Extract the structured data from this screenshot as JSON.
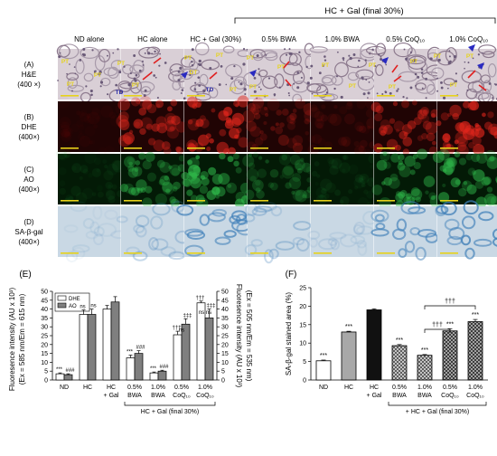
{
  "header": {
    "columns": [
      "ND alone",
      "HC alone",
      "HC + Gal (30%)",
      "0.5% BWA",
      "1.0% BWA",
      "0.5% CoQ₁₀",
      "1.0% CoQ₁₀"
    ],
    "group_label": "HC  + Gal (final 30%)"
  },
  "rows": [
    {
      "letter": "(A)",
      "name": "H&E",
      "mag": "(400 ×)",
      "tint": "#d9cfd6"
    },
    {
      "letter": "(B)",
      "name": "DHE",
      "mag": "(400×)",
      "tint": "#200404"
    },
    {
      "letter": "(C)",
      "name": "AO",
      "mag": "(400×)",
      "tint": "#031a06"
    },
    {
      "letter": "(D)",
      "name": "SA-β-gal",
      "mag": "(400×)",
      "tint": "#c9d8e4"
    }
  ],
  "micro_labels": {
    "pt": "PT",
    "dt": "DT",
    "td": "TD"
  },
  "panel_letters": {
    "e": "(E)",
    "f": "(F)"
  },
  "colors": {
    "dhe": "#ffffff",
    "ao": "#7f7f7f",
    "red_signal": "#e0261c",
    "green_signal": "#2fb84a",
    "blue_stain": "#3f7fb8"
  },
  "chart_data": [
    {
      "type": "bar",
      "panel": "(E)",
      "categories": [
        "ND",
        "HC",
        "HC + Gal",
        "0.5% BWA",
        "1.0% BWA",
        "0.5% CoQ₁₀",
        "1.0% CoQ₁₀"
      ],
      "series": [
        {
          "name": "DHE",
          "values": [
            3.5,
            37,
            40,
            12.5,
            4,
            25.5,
            43.5
          ],
          "errors": [
            0.5,
            2.5,
            2,
            1.5,
            0.5,
            2,
            1
          ]
        },
        {
          "name": "AO",
          "values": [
            3,
            37,
            44,
            15,
            5,
            31.5,
            35
          ],
          "errors": [
            0.5,
            3,
            3,
            1.5,
            0.5,
            3,
            5
          ]
        }
      ],
      "ylabel": "Fluoresence intensity (AU x 10³)\n(Ex = 585 nm/Em = 615 nm)",
      "ylabel_right": "Fluoresence intensity (AU x 10³)\n(Ex = 505 nm/Em = 535 nm)",
      "ylim": [
        0,
        50
      ],
      "y_ticks": [
        "0",
        "5",
        "10",
        "15",
        "20",
        "25",
        "30",
        "35",
        "40",
        "45",
        "50"
      ],
      "group_label": "HC + Gal (final 30%)",
      "annotations": [
        [
          "***",
          "###"
        ],
        [
          "ns",
          "ns"
        ],
        [
          "",
          ""
        ],
        [
          "***",
          "###"
        ],
        [
          "***",
          "###"
        ],
        [
          "†††",
          "‡‡‡"
        ],
        [
          "†††",
          "‡‡‡"
        ]
      ],
      "sub_annotations": [
        "",
        "",
        "",
        "",
        "",
        "ns",
        "ns ns"
      ],
      "legend": "top-left"
    },
    {
      "type": "bar",
      "panel": "(F)",
      "categories": [
        "ND",
        "HC",
        "HC + Gal",
        "0.5% BWA",
        "1.0% BWA",
        "0.5% CoQ₁₀",
        "1.0% CoQ₁₀"
      ],
      "values": [
        5.2,
        13,
        19,
        9.3,
        6.7,
        13.3,
        15.8
      ],
      "errors": [
        0.2,
        0.2,
        0.3,
        0.3,
        0.2,
        0.6,
        0.6
      ],
      "annotations": [
        "***",
        "***",
        "",
        "***",
        "***",
        "***",
        "***"
      ],
      "brackets": [
        "†††",
        "†††"
      ],
      "ylabel": "SA-β-gal stained area (%)",
      "ylim": [
        0,
        25
      ],
      "y_ticks": [
        "0",
        "5",
        "10",
        "15",
        "20",
        "25"
      ],
      "group_label": "+ HC + Gal (final 30%)"
    }
  ]
}
